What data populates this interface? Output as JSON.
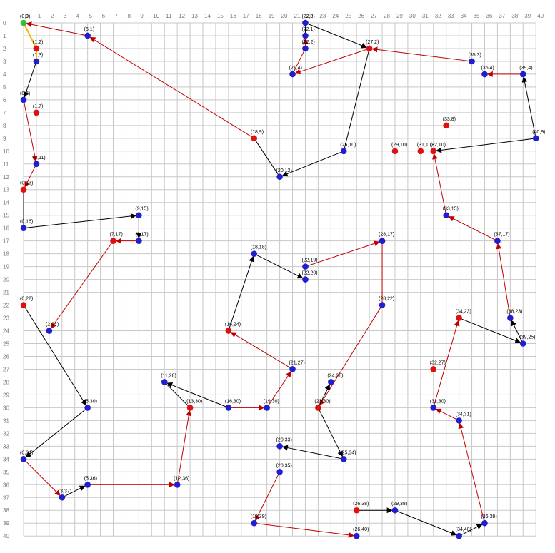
{
  "colors": {
    "background": "#ffffff",
    "grid": "#c8c8c8",
    "axis_text": "#7a7a7a",
    "blue_point": "#1f1fcf",
    "red_point": "#e01010",
    "green_point": "#30c030",
    "black_edge": "#000000",
    "red_edge": "#c00000",
    "yellow_edge": "#f2b600"
  },
  "grid": {
    "x_ticks": [
      "0",
      "1",
      "2",
      "3",
      "4",
      "5",
      "6",
      "7",
      "8",
      "9",
      "10",
      "11",
      "12",
      "13",
      "14",
      "15",
      "16",
      "17",
      "18",
      "19",
      "20",
      "21",
      "22",
      "23",
      "24",
      "25",
      "26",
      "27",
      "28",
      "29",
      "30",
      "31",
      "32",
      "33",
      "34",
      "35",
      "36",
      "37",
      "38",
      "39",
      "40"
    ],
    "y_ticks": [
      "0",
      "1",
      "2",
      "3",
      "4",
      "5",
      "6",
      "7",
      "8",
      "9",
      "10",
      "11",
      "12",
      "13",
      "14",
      "15",
      "16",
      "17",
      "18",
      "19",
      "20",
      "21",
      "22",
      "23",
      "24",
      "25",
      "26",
      "27",
      "28",
      "29",
      "30",
      "31",
      "32",
      "33",
      "34",
      "35",
      "36",
      "37",
      "38",
      "39",
      "40"
    ]
  },
  "points": [
    {
      "id": "p0_0",
      "x": 0,
      "y": 0,
      "label": "(0,0)",
      "color": "green"
    },
    {
      "id": "p1_2",
      "x": 1,
      "y": 2,
      "label": "(1,2)",
      "color": "red"
    },
    {
      "id": "p1_3",
      "x": 1,
      "y": 3,
      "label": "(1,3)",
      "color": "blue"
    },
    {
      "id": "p5_1",
      "x": 5,
      "y": 1,
      "label": "(5,1)",
      "color": "blue"
    },
    {
      "id": "p0_6",
      "x": 0,
      "y": 6,
      "label": "(0,6)",
      "color": "blue"
    },
    {
      "id": "p1_7",
      "x": 1,
      "y": 7,
      "label": "(1,7)",
      "color": "red"
    },
    {
      "id": "p1_11",
      "x": 1,
      "y": 11,
      "label": "(1,11)",
      "color": "blue"
    },
    {
      "id": "p0_13",
      "x": 0,
      "y": 13,
      "label": "(0,13)",
      "color": "red"
    },
    {
      "id": "p0_16",
      "x": 0,
      "y": 16,
      "label": "(0,16)",
      "color": "blue"
    },
    {
      "id": "p9_15",
      "x": 9,
      "y": 15,
      "label": "(9,15)",
      "color": "blue"
    },
    {
      "id": "p9_17",
      "x": 9,
      "y": 17,
      "label": "(9,17)",
      "color": "blue"
    },
    {
      "id": "p7_17",
      "x": 7,
      "y": 17,
      "label": "(7,17)",
      "color": "red"
    },
    {
      "id": "p2_24",
      "x": 2,
      "y": 24,
      "label": "(2,24)",
      "color": "blue"
    },
    {
      "id": "p0_22",
      "x": 0,
      "y": 22,
      "label": "(0,22)",
      "color": "red"
    },
    {
      "id": "p5_30",
      "x": 5,
      "y": 30,
      "label": "(5,30)",
      "color": "blue"
    },
    {
      "id": "p0_34",
      "x": 0,
      "y": 34,
      "label": "(0,34)",
      "color": "blue"
    },
    {
      "id": "p3_37",
      "x": 3,
      "y": 37,
      "label": "(3,37)",
      "color": "blue"
    },
    {
      "id": "p5_36",
      "x": 5,
      "y": 36,
      "label": "(5,36)",
      "color": "blue"
    },
    {
      "id": "p12_36",
      "x": 12,
      "y": 36,
      "label": "(12,36)",
      "color": "blue"
    },
    {
      "id": "p13_30",
      "x": 13,
      "y": 30,
      "label": "(13,30)",
      "color": "red"
    },
    {
      "id": "p11_28",
      "x": 11,
      "y": 28,
      "label": "(11,28)",
      "color": "blue"
    },
    {
      "id": "p16_30",
      "x": 16,
      "y": 30,
      "label": "(16,30)",
      "color": "blue"
    },
    {
      "id": "p19_30",
      "x": 19,
      "y": 30,
      "label": "(19,30)",
      "color": "blue"
    },
    {
      "id": "p21_27",
      "x": 21,
      "y": 27,
      "label": "(21,27)",
      "color": "blue"
    },
    {
      "id": "p16_24",
      "x": 16,
      "y": 24,
      "label": "(16,24)",
      "color": "red"
    },
    {
      "id": "p18_18",
      "x": 18,
      "y": 18,
      "label": "(18,18)",
      "color": "blue"
    },
    {
      "id": "p22_20",
      "x": 22,
      "y": 20,
      "label": "(22,20)",
      "color": "blue"
    },
    {
      "id": "p22_19",
      "x": 22,
      "y": 19,
      "label": "(22,19)",
      "color": "blue"
    },
    {
      "id": "p28_17",
      "x": 28,
      "y": 17,
      "label": "(28,17)",
      "color": "blue"
    },
    {
      "id": "p28_22",
      "x": 28,
      "y": 22,
      "label": "(28,22)",
      "color": "blue"
    },
    {
      "id": "p23_30",
      "x": 23,
      "y": 30,
      "label": "(23,30)",
      "color": "red"
    },
    {
      "id": "p24_28",
      "x": 24,
      "y": 28,
      "label": "(24,28)",
      "color": "blue"
    },
    {
      "id": "p25_34",
      "x": 25,
      "y": 34,
      "label": "(25,34)",
      "color": "blue"
    },
    {
      "id": "p20_33",
      "x": 20,
      "y": 33,
      "label": "(20,33)",
      "color": "blue"
    },
    {
      "id": "p20_35",
      "x": 20,
      "y": 35,
      "label": "(20,35)",
      "color": "blue"
    },
    {
      "id": "p18_39",
      "x": 18,
      "y": 39,
      "label": "(18,39)",
      "color": "blue"
    },
    {
      "id": "p26_40",
      "x": 26,
      "y": 40,
      "label": "(26,40)",
      "color": "blue"
    },
    {
      "id": "p26_38",
      "x": 26,
      "y": 38,
      "label": "(26,38)",
      "color": "red"
    },
    {
      "id": "p29_38",
      "x": 29,
      "y": 38,
      "label": "(29,38)",
      "color": "blue"
    },
    {
      "id": "p34_40",
      "x": 34,
      "y": 40,
      "label": "(34,40)",
      "color": "blue"
    },
    {
      "id": "p36_39",
      "x": 36,
      "y": 39,
      "label": "(36,39)",
      "color": "blue"
    },
    {
      "id": "p34_31",
      "x": 34,
      "y": 31,
      "label": "(34,31)",
      "color": "blue"
    },
    {
      "id": "p32_30",
      "x": 32,
      "y": 30,
      "label": "(32,30)",
      "color": "blue"
    },
    {
      "id": "p32_27",
      "x": 32,
      "y": 27,
      "label": "(32,27)",
      "color": "red"
    },
    {
      "id": "p34_23",
      "x": 34,
      "y": 23,
      "label": "(34,23)",
      "color": "red"
    },
    {
      "id": "p39_25",
      "x": 39,
      "y": 25,
      "label": "(39,25)",
      "color": "blue"
    },
    {
      "id": "p38_23",
      "x": 38,
      "y": 23,
      "label": "(38,23)",
      "color": "blue"
    },
    {
      "id": "p37_17",
      "x": 37,
      "y": 17,
      "label": "(37,17)",
      "color": "blue"
    },
    {
      "id": "p33_15",
      "x": 33,
      "y": 15,
      "label": "(33,15)",
      "color": "blue"
    },
    {
      "id": "p32_10",
      "x": 32,
      "y": 10,
      "label": "(32,10)",
      "color": "red"
    },
    {
      "id": "p31_10",
      "x": 31,
      "y": 10,
      "label": "(31,10)",
      "color": "red"
    },
    {
      "id": "p29_10",
      "x": 29,
      "y": 10,
      "label": "(29,10)",
      "color": "red"
    },
    {
      "id": "p33_8",
      "x": 33,
      "y": 8,
      "label": "(33,8)",
      "color": "red"
    },
    {
      "id": "p40_9",
      "x": 40,
      "y": 9,
      "label": "(40,9)",
      "color": "blue"
    },
    {
      "id": "p39_4",
      "x": 39,
      "y": 4,
      "label": "(39,4)",
      "color": "blue"
    },
    {
      "id": "p36_4",
      "x": 36,
      "y": 4,
      "label": "(36,4)",
      "color": "blue"
    },
    {
      "id": "p35_3",
      "x": 35,
      "y": 3,
      "label": "(35,3)",
      "color": "blue"
    },
    {
      "id": "p27_2",
      "x": 27,
      "y": 2,
      "label": "(27,2)",
      "color": "red"
    },
    {
      "id": "p21_4",
      "x": 21,
      "y": 4,
      "label": "(21,4)",
      "color": "blue"
    },
    {
      "id": "p22_2",
      "x": 22,
      "y": 2,
      "label": "(22,2)",
      "color": "blue"
    },
    {
      "id": "p22_1",
      "x": 22,
      "y": 1,
      "label": "(22,1)",
      "color": "blue"
    },
    {
      "id": "p22_0",
      "x": 22,
      "y": 0,
      "label": "(22,0)",
      "color": "blue"
    },
    {
      "id": "p25_10",
      "x": 25,
      "y": 10,
      "label": "(25,10)",
      "color": "blue"
    },
    {
      "id": "p20_12",
      "x": 20,
      "y": 12,
      "label": "(20,12)",
      "color": "blue"
    },
    {
      "id": "p18_9",
      "x": 18,
      "y": 9,
      "label": "(18,9)",
      "color": "red"
    }
  ],
  "edges": [
    {
      "from": [
        0,
        0
      ],
      "to": [
        1,
        2
      ],
      "color": "yellow",
      "arrow": false
    },
    {
      "from": [
        1,
        2
      ],
      "to": [
        1,
        3
      ],
      "color": "yellow",
      "arrow": false
    },
    {
      "from": [
        1,
        3
      ],
      "to": [
        0,
        6
      ],
      "color": "black",
      "arrow": true
    },
    {
      "from": [
        0,
        6
      ],
      "to": [
        1,
        11
      ],
      "color": "red",
      "arrow": true
    },
    {
      "from": [
        1,
        11
      ],
      "to": [
        0,
        13
      ],
      "color": "red",
      "arrow": true
    },
    {
      "from": [
        0,
        13
      ],
      "to": [
        0,
        16
      ],
      "color": "black",
      "arrow": false
    },
    {
      "from": [
        0,
        16
      ],
      "to": [
        9,
        15
      ],
      "color": "black",
      "arrow": true
    },
    {
      "from": [
        9,
        15
      ],
      "to": [
        9,
        17
      ],
      "color": "black",
      "arrow": true
    },
    {
      "from": [
        9,
        17
      ],
      "to": [
        7,
        17
      ],
      "color": "red",
      "arrow": true
    },
    {
      "from": [
        7,
        17
      ],
      "to": [
        2,
        24
      ],
      "color": "red",
      "arrow": true
    },
    {
      "from": [
        0,
        22
      ],
      "to": [
        5,
        30
      ],
      "color": "black",
      "arrow": true
    },
    {
      "from": [
        5,
        30
      ],
      "to": [
        0,
        34
      ],
      "color": "black",
      "arrow": true
    },
    {
      "from": [
        0,
        34
      ],
      "to": [
        3,
        37
      ],
      "color": "red",
      "arrow": true
    },
    {
      "from": [
        3,
        37
      ],
      "to": [
        5,
        36
      ],
      "color": "black",
      "arrow": true
    },
    {
      "from": [
        5,
        36
      ],
      "to": [
        12,
        36
      ],
      "color": "red",
      "arrow": true
    },
    {
      "from": [
        12,
        36
      ],
      "to": [
        13,
        30
      ],
      "color": "red",
      "arrow": true
    },
    {
      "from": [
        13,
        30
      ],
      "to": [
        11,
        28
      ],
      "color": "black",
      "arrow": false
    },
    {
      "from": [
        16,
        30
      ],
      "to": [
        11,
        28
      ],
      "color": "black",
      "arrow": true
    },
    {
      "from": [
        16,
        30
      ],
      "to": [
        19,
        30
      ],
      "color": "red",
      "arrow": true
    },
    {
      "from": [
        19,
        30
      ],
      "to": [
        21,
        27
      ],
      "color": "red",
      "arrow": true
    },
    {
      "from": [
        21,
        27
      ],
      "to": [
        16,
        24
      ],
      "color": "red",
      "arrow": true
    },
    {
      "from": [
        16,
        24
      ],
      "to": [
        18,
        18
      ],
      "color": "black",
      "arrow": true
    },
    {
      "from": [
        18,
        18
      ],
      "to": [
        22,
        20
      ],
      "color": "black",
      "arrow": true
    },
    {
      "from": [
        22,
        19
      ],
      "to": [
        28,
        17
      ],
      "color": "red",
      "arrow": true
    },
    {
      "from": [
        28,
        17
      ],
      "to": [
        28,
        22
      ],
      "color": "red",
      "arrow": false
    },
    {
      "from": [
        28,
        22
      ],
      "to": [
        23,
        30
      ],
      "color": "red",
      "arrow": true
    },
    {
      "from": [
        23,
        30
      ],
      "to": [
        24,
        28
      ],
      "color": "black",
      "arrow": true
    },
    {
      "from": [
        23,
        30
      ],
      "to": [
        25,
        34
      ],
      "color": "black",
      "arrow": true
    },
    {
      "from": [
        25,
        34
      ],
      "to": [
        20,
        33
      ],
      "color": "black",
      "arrow": true
    },
    {
      "from": [
        20,
        35
      ],
      "to": [
        18,
        39
      ],
      "color": "red",
      "arrow": true
    },
    {
      "from": [
        18,
        39
      ],
      "to": [
        26,
        40
      ],
      "color": "red",
      "arrow": true
    },
    {
      "from": [
        26,
        38
      ],
      "to": [
        29,
        38
      ],
      "color": "black",
      "arrow": true
    },
    {
      "from": [
        29,
        38
      ],
      "to": [
        34,
        40
      ],
      "color": "black",
      "arrow": true
    },
    {
      "from": [
        34,
        40
      ],
      "to": [
        36,
        39
      ],
      "color": "black",
      "arrow": true
    },
    {
      "from": [
        36,
        39
      ],
      "to": [
        34,
        31
      ],
      "color": "red",
      "arrow": true
    },
    {
      "from": [
        34,
        31
      ],
      "to": [
        32,
        30
      ],
      "color": "red",
      "arrow": true
    },
    {
      "from": [
        32,
        30
      ],
      "to": [
        34,
        23
      ],
      "color": "red",
      "arrow": true
    },
    {
      "from": [
        34,
        23
      ],
      "to": [
        39,
        25
      ],
      "color": "black",
      "arrow": true
    },
    {
      "from": [
        39,
        25
      ],
      "to": [
        38,
        23
      ],
      "color": "black",
      "arrow": true
    },
    {
      "from": [
        38,
        23
      ],
      "to": [
        37,
        17
      ],
      "color": "red",
      "arrow": true
    },
    {
      "from": [
        37,
        17
      ],
      "to": [
        33,
        15
      ],
      "color": "red",
      "arrow": true
    },
    {
      "from": [
        33,
        15
      ],
      "to": [
        32,
        10
      ],
      "color": "red",
      "arrow": true
    },
    {
      "from": [
        40,
        9
      ],
      "to": [
        32,
        10
      ],
      "color": "black",
      "arrow": true
    },
    {
      "from": [
        40,
        9
      ],
      "to": [
        39,
        4
      ],
      "color": "black",
      "arrow": true
    },
    {
      "from": [
        39,
        4
      ],
      "to": [
        36,
        4
      ],
      "color": "red",
      "arrow": true
    },
    {
      "from": [
        35,
        3
      ],
      "to": [
        27,
        2
      ],
      "color": "red",
      "arrow": true
    },
    {
      "from": [
        27,
        2
      ],
      "to": [
        21,
        4
      ],
      "color": "red",
      "arrow": true
    },
    {
      "from": [
        21,
        4
      ],
      "to": [
        22,
        2
      ],
      "color": "red",
      "arrow": false
    },
    {
      "from": [
        22,
        2
      ],
      "to": [
        22,
        1
      ],
      "color": "red",
      "arrow": true
    },
    {
      "from": [
        22,
        1
      ],
      "to": [
        22,
        0
      ],
      "color": "black",
      "arrow": false
    },
    {
      "from": [
        22,
        0
      ],
      "to": [
        27,
        2
      ],
      "color": "black",
      "arrow": true
    },
    {
      "from": [
        27,
        2
      ],
      "to": [
        25,
        10
      ],
      "color": "black",
      "arrow": false
    },
    {
      "from": [
        25,
        10
      ],
      "to": [
        20,
        12
      ],
      "color": "black",
      "arrow": true
    },
    {
      "from": [
        20,
        12
      ],
      "to": [
        18,
        9
      ],
      "color": "black",
      "arrow": false
    },
    {
      "from": [
        18,
        9
      ],
      "to": [
        5,
        1
      ],
      "color": "red",
      "arrow": true
    },
    {
      "from": [
        5,
        1
      ],
      "to": [
        0,
        0
      ],
      "color": "red",
      "arrow": true
    }
  ]
}
